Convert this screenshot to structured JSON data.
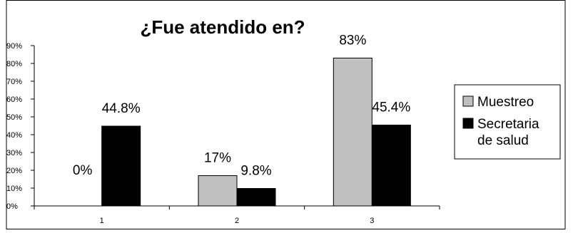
{
  "chart_data": {
    "type": "bar",
    "title": "¿Fue atendido en?",
    "categories": [
      "1",
      "2",
      "3"
    ],
    "series": [
      {
        "name": "Muestreo",
        "values": [
          0,
          17,
          83
        ],
        "labels": [
          "0%",
          "17%",
          "83%"
        ],
        "color": "#c0c0c0"
      },
      {
        "name": "Secretaria de salud",
        "values": [
          44.8,
          9.8,
          45.4
        ],
        "labels": [
          "44.8%",
          "9.8%",
          "45.4%"
        ],
        "color": "#000000"
      }
    ],
    "legend_lines": [
      [
        "Muestreo"
      ],
      [
        "Secretaria",
        "de salud"
      ]
    ],
    "ylim": [
      0,
      90
    ],
    "yticks": [
      0,
      10,
      20,
      30,
      40,
      50,
      60,
      70,
      80,
      90
    ],
    "ytick_labels": [
      "0%",
      "10%",
      "20%",
      "30%",
      "40%",
      "50%",
      "60%",
      "70%",
      "80%",
      "90%"
    ],
    "legend_position": "right",
    "grid": false
  }
}
